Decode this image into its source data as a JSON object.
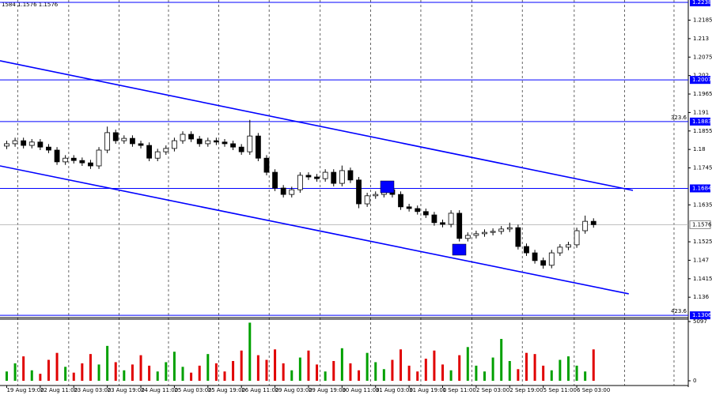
{
  "chart_data": {
    "type": "candlestick",
    "header": "1584 1.1576 1.1576",
    "xlim": [
      -0.8,
      81.3
    ],
    "xticks": [
      {
        "value": 0,
        "label": "19 Aug 19:00"
      },
      {
        "value": 4,
        "label": "22 Aug 11:00"
      },
      {
        "value": 8,
        "label": "23 Aug 03:00"
      },
      {
        "value": 12,
        "label": "23 Aug 19:00"
      },
      {
        "value": 16,
        "label": "24 Aug 11:00"
      },
      {
        "value": 20,
        "label": "25 Aug 03:00"
      },
      {
        "value": 24,
        "label": "25 Aug 19:00"
      },
      {
        "value": 28,
        "label": "26 Aug 11:00"
      },
      {
        "value": 32,
        "label": "29 Aug 03:00"
      },
      {
        "value": 36,
        "label": "29 Aug 19:00"
      },
      {
        "value": 40,
        "label": "30 Aug 11:00"
      },
      {
        "value": 44,
        "label": "31 Aug 03:00"
      },
      {
        "value": 48,
        "label": "31 Aug 19:00"
      },
      {
        "value": 52,
        "label": "1 Sep 11:00"
      },
      {
        "value": 56,
        "label": "2 Sep 03:00"
      },
      {
        "value": 60,
        "label": "2 Sep 19:00"
      },
      {
        "value": 64,
        "label": "5 Sep 11:00"
      },
      {
        "value": 68,
        "label": "6 Sep 03:00"
      }
    ],
    "xgrid": [
      1.3,
      7.4,
      13.4,
      19.3,
      25.3,
      31.3,
      37.4,
      43.4,
      49.4,
      55.5,
      61.5,
      67.7,
      73.7,
      79.6
    ],
    "ylim": [
      1.1304,
      1.2245
    ],
    "yticks": [
      1.2185,
      1.213,
      1.2075,
      1.202,
      1.1965,
      1.191,
      1.1855,
      1.18,
      1.1745,
      1.1635,
      1.1525,
      1.147,
      1.1415,
      1.136
    ],
    "levels": [
      {
        "value": 1.2238
      },
      {
        "value": 1.2007
      },
      {
        "value": 1.1883,
        "note": "323.6"
      },
      {
        "value": 1.1684
      },
      {
        "value": 1.1306,
        "note": "423.6"
      }
    ],
    "level_color": "#0000ff",
    "current_price": 1.1576,
    "trendlines": [
      {
        "x": [
          -0.8,
          74.7
        ],
        "y": [
          1.2064,
          1.1678
        ],
        "color": "#0000ff"
      },
      {
        "x": [
          -0.8,
          74.2
        ],
        "y": [
          1.1751,
          1.137
        ],
        "color": "#0000ff"
      }
    ],
    "open": [
      1.181,
      1.1817,
      1.1826,
      1.1812,
      1.1822,
      1.1807,
      1.1798,
      1.1763,
      1.1774,
      1.1767,
      1.176,
      1.1751,
      1.1798,
      1.185,
      1.1826,
      1.1833,
      1.1817,
      1.1812,
      1.1774,
      1.1793,
      1.1803,
      1.1826,
      1.1845,
      1.1831,
      1.1817,
      1.1826,
      1.1822,
      1.1817,
      1.1807,
      1.1793,
      1.184,
      1.1774,
      1.1732,
      1.1685,
      1.1666,
      1.168,
      1.1723,
      1.1718,
      1.1713,
      1.1732,
      1.1699,
      1.1737,
      1.1709,
      1.1638,
      1.1662,
      1.1666,
      1.168,
      1.1666,
      1.1629,
      1.1624,
      1.1615,
      1.1605,
      1.1582,
      1.1577,
      1.161,
      1.1535,
      1.1544,
      1.1549,
      1.1553,
      1.1556,
      1.1563,
      1.1567,
      1.1511,
      1.1492,
      1.1469,
      1.1455,
      1.1492,
      1.1509,
      1.1516,
      1.1558,
      1.1586
    ],
    "high": [
      1.1826,
      1.1835,
      1.1835,
      1.1831,
      1.1831,
      1.1816,
      1.1807,
      1.1783,
      1.1783,
      1.1776,
      1.1769,
      1.1807,
      1.1868,
      1.1859,
      1.1842,
      1.1842,
      1.1826,
      1.1821,
      1.1802,
      1.1812,
      1.1835,
      1.1854,
      1.1854,
      1.184,
      1.1835,
      1.1835,
      1.1831,
      1.1826,
      1.1816,
      1.1888,
      1.1849,
      1.1783,
      1.1741,
      1.1694,
      1.1689,
      1.1732,
      1.1732,
      1.1727,
      1.1741,
      1.1741,
      1.1752,
      1.1746,
      1.1718,
      1.1671,
      1.1675,
      1.1689,
      1.1689,
      1.1675,
      1.1638,
      1.1633,
      1.1624,
      1.1614,
      1.1591,
      1.1619,
      1.1619,
      1.1553,
      1.1558,
      1.1562,
      1.1565,
      1.1572,
      1.1582,
      1.1576,
      1.152,
      1.1501,
      1.1478,
      1.1501,
      1.1518,
      1.1525,
      1.1567,
      1.1603,
      1.1595
    ],
    "low": [
      1.1801,
      1.1808,
      1.1803,
      1.1803,
      1.1798,
      1.1789,
      1.1754,
      1.1754,
      1.1758,
      1.1751,
      1.1742,
      1.1742,
      1.1789,
      1.1817,
      1.1817,
      1.1808,
      1.1803,
      1.1765,
      1.1765,
      1.1784,
      1.1794,
      1.1817,
      1.1822,
      1.1808,
      1.1808,
      1.1813,
      1.1808,
      1.1798,
      1.1784,
      1.1784,
      1.1765,
      1.1723,
      1.1676,
      1.1657,
      1.1657,
      1.1671,
      1.1709,
      1.1704,
      1.1704,
      1.169,
      1.169,
      1.17,
      1.1625,
      1.1629,
      1.1653,
      1.1657,
      1.1657,
      1.162,
      1.1615,
      1.1606,
      1.1596,
      1.1573,
      1.1568,
      1.1568,
      1.1526,
      1.1526,
      1.1535,
      1.154,
      1.1544,
      1.1547,
      1.1554,
      1.1502,
      1.1483,
      1.146,
      1.1445,
      1.1446,
      1.1483,
      1.15,
      1.1507,
      1.1549,
      1.1567
    ],
    "close": [
      1.1817,
      1.1826,
      1.1812,
      1.1822,
      1.1807,
      1.1798,
      1.1763,
      1.1774,
      1.1767,
      1.176,
      1.1751,
      1.1798,
      1.185,
      1.1826,
      1.1833,
      1.1817,
      1.1812,
      1.1774,
      1.1793,
      1.1803,
      1.1826,
      1.1845,
      1.1831,
      1.1817,
      1.1826,
      1.1822,
      1.1817,
      1.1807,
      1.1793,
      1.184,
      1.1774,
      1.1732,
      1.1685,
      1.1666,
      1.168,
      1.1723,
      1.1718,
      1.1713,
      1.1732,
      1.1699,
      1.1737,
      1.1709,
      1.1638,
      1.1662,
      1.1666,
      1.168,
      1.1666,
      1.1629,
      1.1624,
      1.1615,
      1.1605,
      1.1582,
      1.1577,
      1.161,
      1.1535,
      1.1544,
      1.1549,
      1.1553,
      1.1556,
      1.1563,
      1.1567,
      1.1511,
      1.1492,
      1.1469,
      1.1455,
      1.1492,
      1.1509,
      1.1516,
      1.1558,
      1.1586,
      1.1576
    ],
    "volume": [
      800,
      1500,
      2100,
      900,
      600,
      1800,
      2400,
      1200,
      700,
      1500,
      2300,
      1400,
      3000,
      1600,
      900,
      1400,
      2200,
      1300,
      800,
      1600,
      2500,
      1200,
      700,
      1300,
      2300,
      1500,
      800,
      1700,
      2600,
      5000,
      2200,
      1800,
      2700,
      1500,
      900,
      2000,
      2600,
      1400,
      800,
      1700,
      2800,
      1500,
      900,
      2400,
      1600,
      1000,
      1800,
      2700,
      1300,
      800,
      1900,
      2600,
      1400,
      900,
      2200,
      2900,
      1300,
      800,
      2000,
      3600,
      1700,
      1000,
      2400,
      2300,
      1300,
      900,
      1800,
      2100,
      1300,
      800,
      2700
    ],
    "vlim": [
      0,
      5097
    ],
    "vticks": [
      5097,
      0
    ],
    "up_color": "#00a000",
    "down_color": "#e00000"
  }
}
